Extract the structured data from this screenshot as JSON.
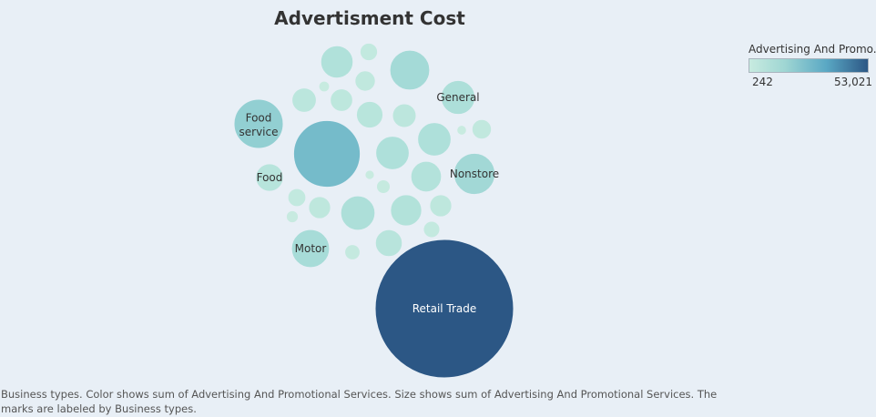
{
  "chart_data": {
    "type": "packed-bubble",
    "title": "Advertisment Cost",
    "legend": {
      "title": "Advertising And Promo..",
      "min_label": "242",
      "max_label": "53,021",
      "color_min": "#c8ebe0",
      "color_max": "#2c5785",
      "placement": "top-right"
    },
    "labeled_bubbles": [
      {
        "name": "Retail Trade",
        "value": 53021
      },
      {
        "name": "Food service",
        "value": 6700
      },
      {
        "name": "General",
        "value": 3200
      },
      {
        "name": "Nonstore",
        "value": 4700
      },
      {
        "name": "Food",
        "value": 2100
      },
      {
        "name": "Motor",
        "value": 4000
      }
    ],
    "unlabeled_bubbles": [
      12300,
      4400,
      3250,
      3100,
      3100,
      2900,
      2700,
      2600,
      2000,
      1950,
      1650,
      1550,
      1400,
      1350,
      1350,
      1150,
      1050,
      900,
      850,
      750,
      650,
      520,
      400,
      320,
      260,
      242
    ]
  },
  "caption": "Business types.  Color shows sum of Advertising And Promotional Services.  Size shows sum of Advertising And Promotional Services.  The marks are labeled by Business types."
}
